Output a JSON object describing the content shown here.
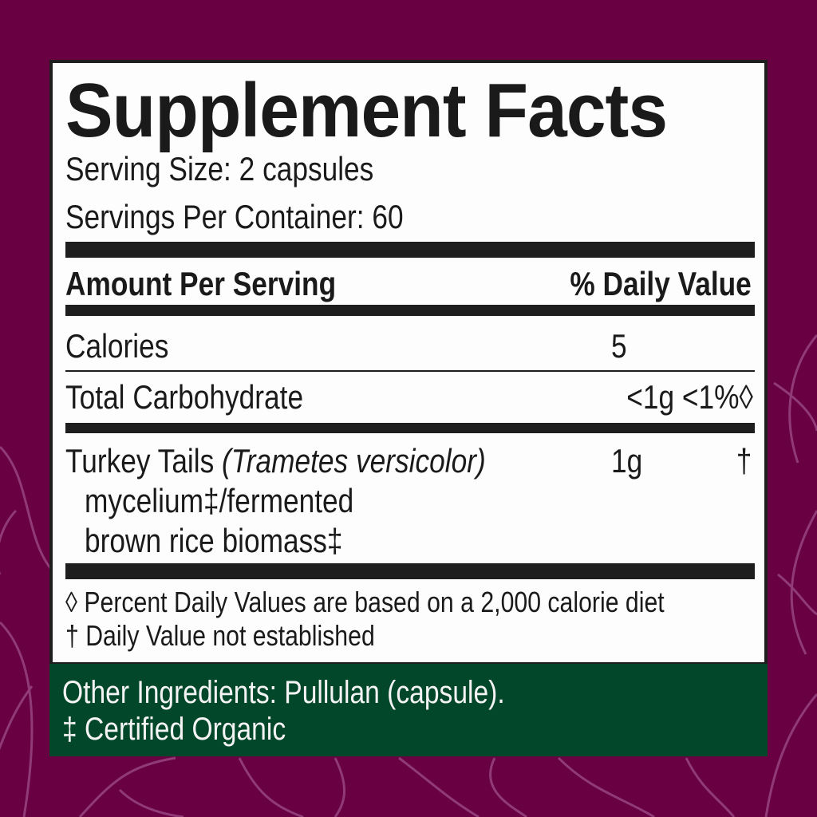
{
  "colors": {
    "background": "#680042",
    "label": "#fdfdfd",
    "ingredients_panel": "#03472a",
    "branches": "#9a4a86"
  },
  "title": "Supplement Facts",
  "serving_size": "Serving Size: 2 capsules",
  "servings_per_container": "Servings Per Container: 60",
  "header": {
    "amount": "Amount Per Serving",
    "daily_value": "% Daily Value"
  },
  "rows": [
    {
      "name": "Calories",
      "amount": "5",
      "dv": ""
    },
    {
      "name": "Total Carbohydrate",
      "amount": "<1g <1%◊",
      "dv": ""
    },
    {
      "name": "Turkey Tails",
      "latin": "(Trametes versicolor)",
      "line2": "mycelium‡/fermented",
      "line3": "brown rice biomass‡",
      "amount": "1g",
      "dv": "†"
    }
  ],
  "footnotes": [
    "◊ Percent Daily Values are based on a 2,000 calorie diet",
    "† Daily Value not established"
  ],
  "other_ingredients": "Other Ingredients: Pullulan (capsule).",
  "organic_note": "‡ Certified Organic"
}
